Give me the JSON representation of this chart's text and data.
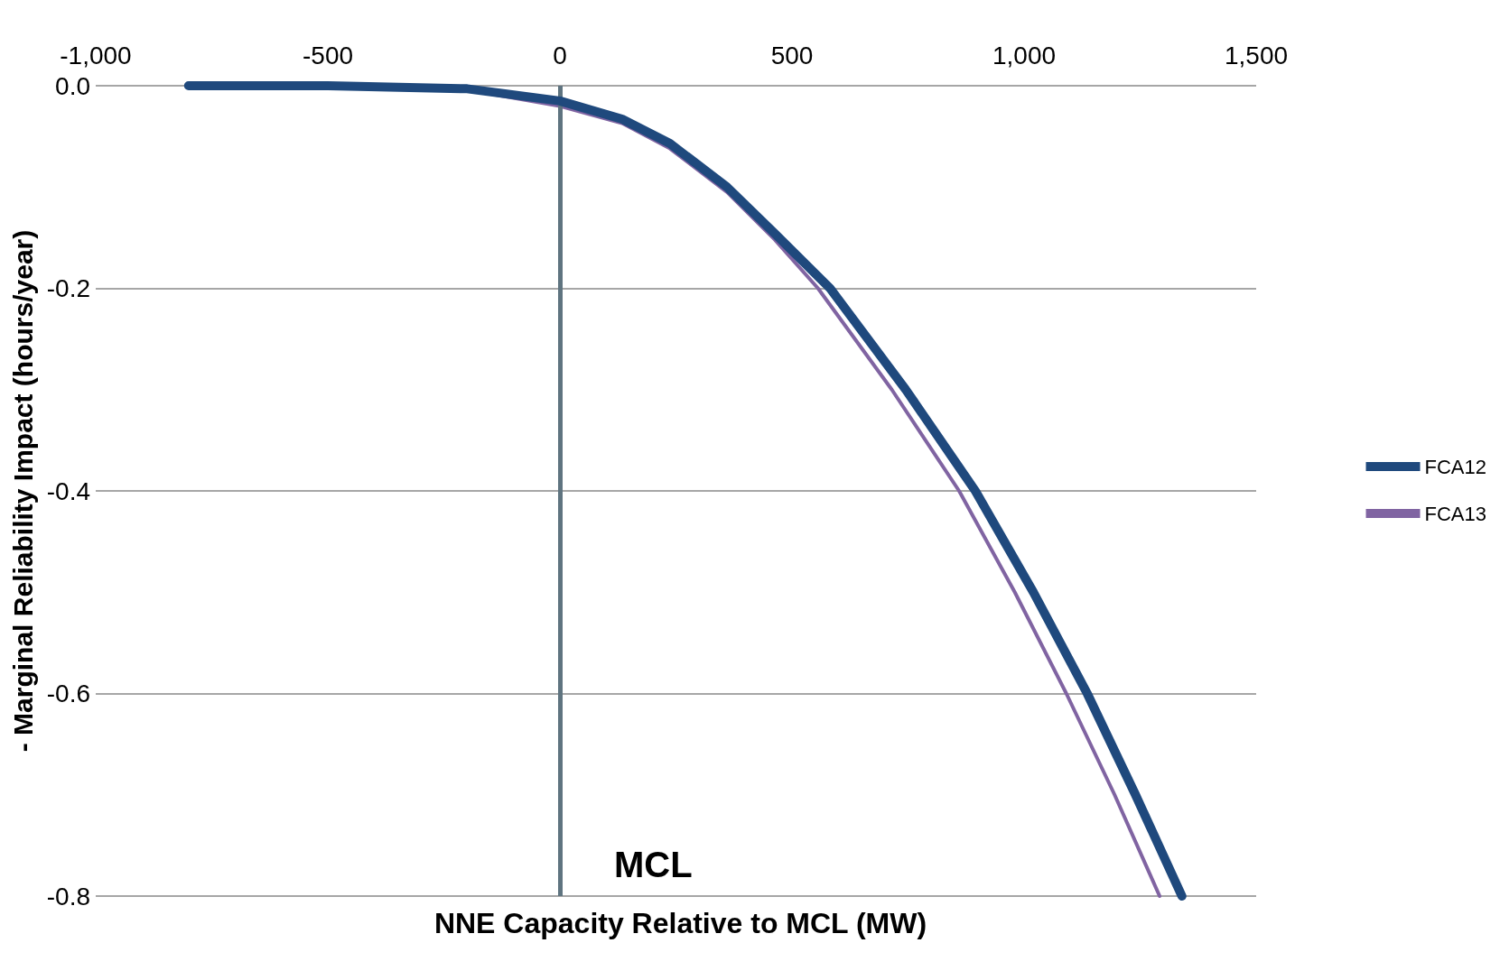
{
  "chart_data": {
    "type": "line",
    "xlabel": "NNE Capacity Relative to MCL (MW)",
    "ylabel": "- Marginal Reliability Impact (hours/year)",
    "xlim": [
      -1000,
      1500
    ],
    "xticks": [
      {
        "value": -1000,
        "label": "-1,000"
      },
      -500,
      0,
      500,
      {
        "value": 1000,
        "label": "1,000"
      },
      {
        "value": 1500,
        "label": "1,500"
      }
    ],
    "ylim": [
      -0.8,
      0
    ],
    "yticks": [
      {
        "value": -0.8,
        "label": "-0.8"
      },
      {
        "value": -0.6,
        "label": "-0.6"
      },
      {
        "value": -0.4,
        "label": "-0.4"
      },
      {
        "value": -0.2,
        "label": "-0.2"
      },
      {
        "value": 0,
        "label": "0.0"
      }
    ],
    "grid": "y",
    "legend": "right",
    "marker": "none",
    "line_style": "solid",
    "ref_lines": [
      {
        "axis": "x",
        "value": 0,
        "label": "MCL",
        "color": "#5f7480"
      }
    ],
    "series": [
      {
        "name": "FCA12",
        "color": "#1f497d",
        "x": [
          -800,
          -500,
          -200,
          0,
          134,
          237,
          360,
          463,
          582,
          745,
          895,
          1020,
          1136,
          1240,
          1340
        ],
        "values": [
          0,
          0,
          -0.003,
          -0.015,
          -0.033,
          -0.057,
          -0.1,
          -0.146,
          -0.2,
          -0.3,
          -0.4,
          -0.5,
          -0.6,
          -0.7,
          -0.8
        ]
      },
      {
        "name": "FCA13",
        "color": "#8064a2",
        "x": [
          -800,
          -500,
          -200,
          0,
          134,
          237,
          360,
          463,
          556,
          715,
          860,
          980,
          1091,
          1195,
          1292
        ],
        "values": [
          0,
          0,
          -0.004,
          -0.02,
          -0.037,
          -0.062,
          -0.105,
          -0.152,
          -0.2,
          -0.3,
          -0.4,
          -0.5,
          -0.6,
          -0.7,
          -0.8
        ]
      }
    ]
  }
}
